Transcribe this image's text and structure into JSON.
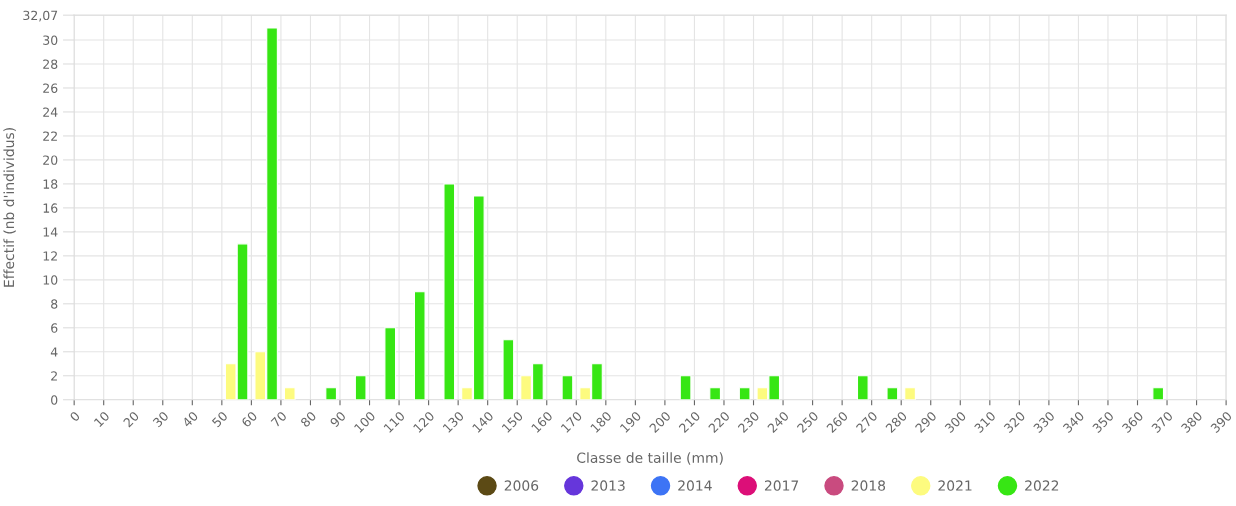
{
  "chart_data": {
    "type": "bar",
    "xlabel": "Classe de taille (mm)",
    "ylabel": "Effectif (nb d'individus)",
    "xlim": [
      0,
      390
    ],
    "xticks": [
      0,
      10,
      20,
      30,
      40,
      50,
      60,
      70,
      80,
      90,
      100,
      110,
      120,
      130,
      140,
      150,
      160,
      170,
      180,
      190,
      200,
      210,
      220,
      230,
      240,
      250,
      260,
      270,
      280,
      290,
      300,
      310,
      320,
      330,
      340,
      350,
      360,
      370,
      380,
      390
    ],
    "ylim": [
      0,
      32.07
    ],
    "yticks": [
      0,
      2,
      4,
      6,
      8,
      10,
      12,
      14,
      16,
      18,
      20,
      22,
      24,
      26,
      28,
      30,
      {
        "value": 32.07,
        "label": "32,07"
      }
    ],
    "grid": true,
    "legend": "bottom",
    "series": [
      {
        "name": "2006",
        "color": "#5c4a15"
      },
      {
        "name": "2013",
        "color": "#6636db"
      },
      {
        "name": "2014",
        "color": "#3d74f5"
      },
      {
        "name": "2017",
        "color": "#dc0f78"
      },
      {
        "name": "2018",
        "color": "#c94b7f"
      },
      {
        "name": "2021",
        "color": "#fdfb7f",
        "x": [
          55,
          65,
          75,
          135,
          155,
          175,
          235,
          285
        ],
        "values": [
          3,
          4,
          1,
          1,
          2,
          1,
          1,
          1
        ]
      },
      {
        "name": "2022",
        "color": "#37e614",
        "x": [
          55,
          65,
          85,
          95,
          105,
          115,
          125,
          135,
          145,
          155,
          165,
          175,
          205,
          215,
          225,
          235,
          265,
          275,
          365
        ],
        "values": [
          13,
          31,
          1,
          2,
          6,
          9,
          18,
          17,
          5,
          3,
          2,
          3,
          2,
          1,
          1,
          2,
          2,
          1,
          1
        ]
      }
    ]
  }
}
